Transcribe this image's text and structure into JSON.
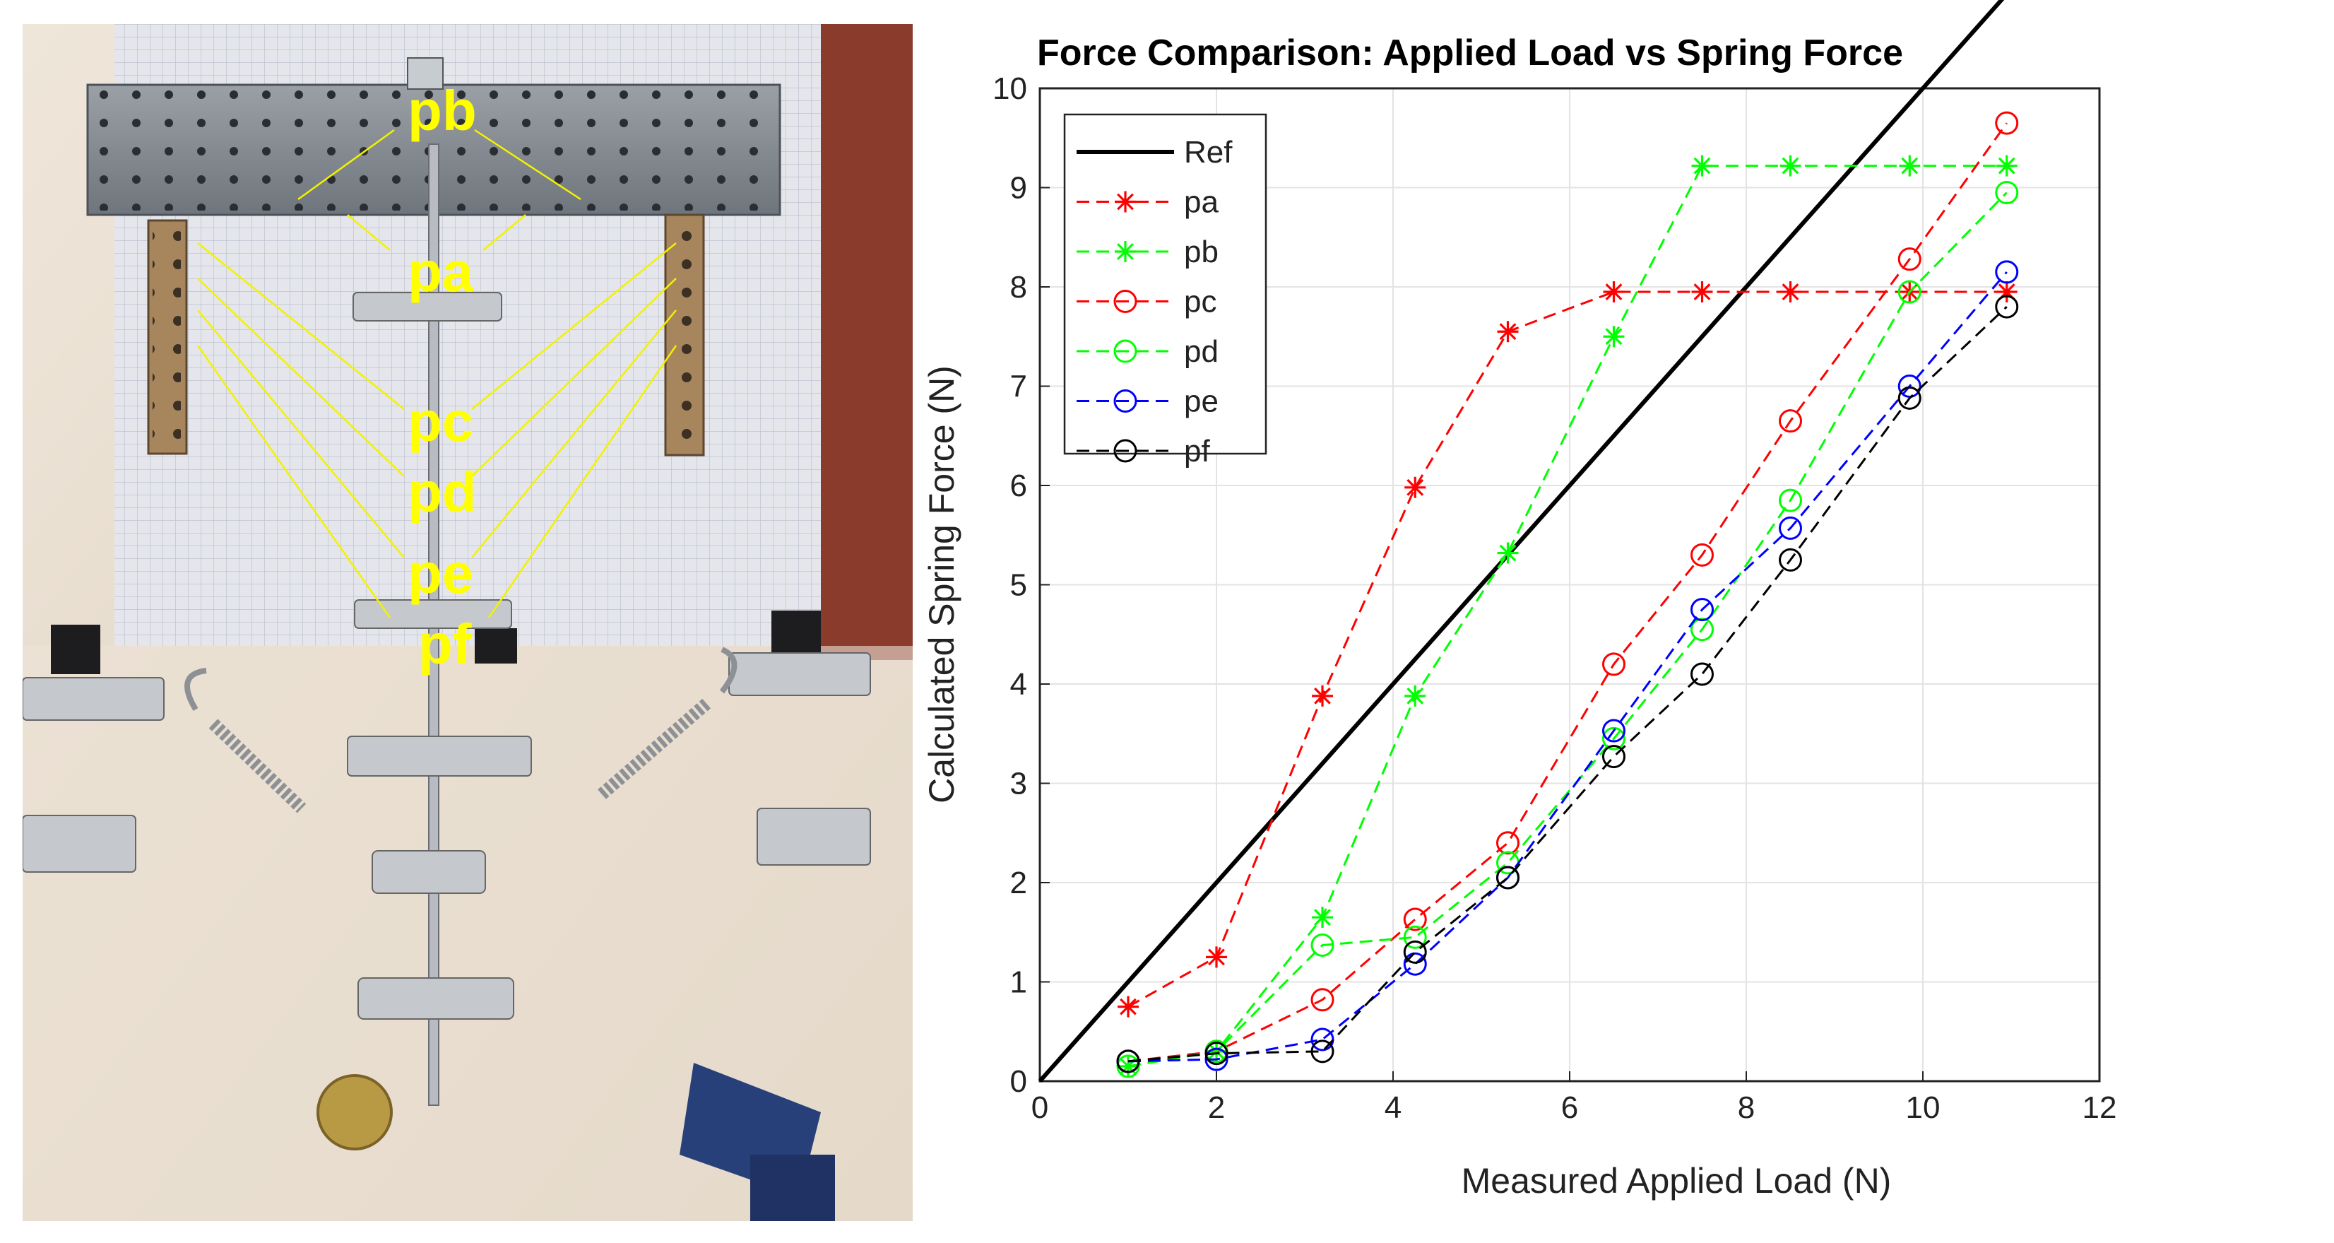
{
  "photo": {
    "labels": [
      "pb",
      "pa",
      "pc",
      "pd",
      "pe",
      "pf"
    ]
  },
  "chart_data": {
    "type": "line",
    "title": "Force Comparison: Applied Load vs Spring Force",
    "xlabel": "Measured Applied Load (N)",
    "ylabel": "Calculated Spring Force (N)",
    "xlim": [
      0,
      12
    ],
    "ylim": [
      0,
      10
    ],
    "xticks": [
      "0",
      "2",
      "4",
      "6",
      "8",
      "10",
      "12"
    ],
    "yticks": [
      "0",
      "1",
      "2",
      "3",
      "4",
      "5",
      "6",
      "7",
      "8",
      "9",
      "10"
    ],
    "grid": true,
    "legend_position": "top-left",
    "x": [
      1.0,
      2.0,
      3.2,
      4.25,
      5.3,
      6.5,
      7.5,
      8.5,
      9.85,
      10.95
    ],
    "series": [
      {
        "name": "Ref",
        "color": "#000000",
        "marker": "none",
        "style": "solid",
        "x": [
          0,
          10.95
        ],
        "values": [
          0,
          10.95
        ]
      },
      {
        "name": "pa",
        "color": "#ff0000",
        "marker": "star",
        "style": "dashed",
        "values": [
          0.75,
          1.25,
          3.88,
          5.98,
          7.55,
          7.95,
          7.95,
          7.95,
          7.95,
          7.95
        ]
      },
      {
        "name": "pb",
        "color": "#00ff00",
        "marker": "star",
        "style": "dashed",
        "values": [
          0.15,
          0.3,
          1.65,
          3.88,
          5.32,
          7.5,
          9.22,
          9.22,
          9.22,
          9.22
        ]
      },
      {
        "name": "pc",
        "color": "#ff0000",
        "marker": "circle",
        "style": "dashed",
        "values": [
          0.2,
          0.3,
          0.82,
          1.63,
          2.4,
          4.2,
          5.3,
          6.65,
          8.28,
          9.65
        ]
      },
      {
        "name": "pd",
        "color": "#00ff00",
        "marker": "circle",
        "style": "dashed",
        "values": [
          0.15,
          0.3,
          1.37,
          1.45,
          2.2,
          3.45,
          4.55,
          5.85,
          7.95,
          8.95
        ]
      },
      {
        "name": "pe",
        "color": "#0000ff",
        "marker": "circle",
        "style": "dashed",
        "values": [
          0.2,
          0.22,
          0.42,
          1.18,
          2.05,
          3.53,
          4.75,
          5.57,
          7.0,
          8.15
        ]
      },
      {
        "name": "pf",
        "color": "#000000",
        "marker": "circle",
        "style": "dashed",
        "values": [
          0.2,
          0.28,
          0.3,
          1.3,
          2.05,
          3.27,
          4.1,
          5.25,
          6.88,
          7.8
        ]
      }
    ]
  }
}
